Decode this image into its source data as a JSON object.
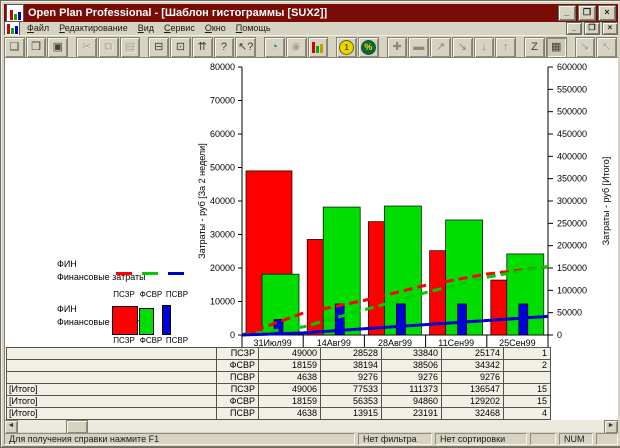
{
  "window": {
    "title": "Open Plan Professional - [Шаблон гистограммы [SUX2]]",
    "controls": {
      "minimize": "_",
      "restore": "❐",
      "close": "×"
    }
  },
  "colors": {
    "titlebar": "#7a0c08",
    "chrome": "#d6d3c3",
    "bar_red": "#ff0000",
    "bar_green": "#00dd00",
    "bar_blue": "#0000dd"
  },
  "menu": {
    "items": [
      "Файл",
      "Редактирование",
      "Вид",
      "Сервис",
      "Окно",
      "Помощь"
    ]
  },
  "toolbar": {
    "buttons": [
      {
        "name": "new",
        "icon_name": "new-document-icon",
        "glyph": "❏"
      },
      {
        "name": "open",
        "icon_name": "open-folder-icon",
        "glyph": "❒"
      },
      {
        "name": "save",
        "icon_name": "save-icon",
        "glyph": "▣"
      },
      {
        "name": "cut",
        "icon_name": "scissors-icon",
        "glyph": "✂",
        "enabled": false,
        "gap": true
      },
      {
        "name": "copy",
        "icon_name": "copy-icon",
        "glyph": "⧉",
        "enabled": false
      },
      {
        "name": "paste",
        "icon_name": "paste-icon",
        "glyph": "▤",
        "enabled": false
      },
      {
        "name": "print",
        "icon_name": "printer-icon",
        "glyph": "⊟",
        "gap": true
      },
      {
        "name": "print-preview",
        "icon_name": "preview-icon",
        "glyph": "⊡"
      },
      {
        "name": "update",
        "icon_name": "double-up-arrow-icon",
        "glyph": "⇈"
      },
      {
        "name": "help",
        "icon_name": "question-mark-icon",
        "glyph": "?"
      },
      {
        "name": "context-help",
        "icon_name": "arrow-question-icon",
        "glyph": "↖?"
      },
      {
        "name": "time-analysis",
        "icon_name": "clock-icon",
        "glyph": "◔",
        "color": "#008080",
        "gap": true
      },
      {
        "name": "resource-analysis",
        "icon_name": "resource-icon",
        "glyph": "◉",
        "enabled": false
      },
      {
        "name": "histogram",
        "icon_name": "histogram-icon",
        "icon": "histogram"
      },
      {
        "name": "cost",
        "icon_name": "coin-icon",
        "icon": "coin",
        "gap": true
      },
      {
        "name": "percent",
        "icon_name": "percent-icon",
        "icon": "percent"
      },
      {
        "name": "add",
        "icon_name": "plus-icon",
        "glyph": "✚",
        "color": "#8d8a6e",
        "gap": true
      },
      {
        "name": "remove",
        "icon_name": "minus-icon",
        "glyph": "▬",
        "color": "#8d8a6e"
      },
      {
        "name": "promote",
        "icon_name": "diagonal-up-icon",
        "glyph": "↗",
        "color": "#8d8a6e"
      },
      {
        "name": "demote",
        "icon_name": "diagonal-down-icon",
        "glyph": "↘",
        "color": "#8d8a6e"
      },
      {
        "name": "move-down",
        "icon_name": "down-arrow-icon",
        "glyph": "↓",
        "color": "#8d8a6e"
      },
      {
        "name": "move-up",
        "icon_name": "up-arrow-icon",
        "glyph": "↑",
        "color": "#8d8a6e"
      },
      {
        "name": "sort",
        "icon_name": "sort-z-icon",
        "glyph": "Z",
        "gap": true
      },
      {
        "name": "table-view",
        "icon_name": "table-grid-icon",
        "glyph": "▦",
        "pressed": true
      },
      {
        "name": "shrink-window",
        "icon_name": "shrink-box-icon",
        "glyph": "↘",
        "enabled": false,
        "gap": true
      },
      {
        "name": "grow-window",
        "icon_name": "grow-box-icon",
        "glyph": "↖",
        "enabled": false
      }
    ]
  },
  "legend": {
    "groups": [
      {
        "kind": "lines",
        "title1": "ФИН",
        "title2": "Финансовые затраты",
        "items": [
          {
            "label": "ПСЗР",
            "color": "#ff0000"
          },
          {
            "label": "ФСВР",
            "color": "#00cc00"
          },
          {
            "label": "ПСВР",
            "color": "#0000cc"
          }
        ]
      },
      {
        "kind": "bars",
        "title1": "ФИН",
        "title2": "Финансовые затраты",
        "items": [
          {
            "label": "ПСЗР",
            "color": "#ff0000"
          },
          {
            "label": "ФСВР",
            "color": "#00dd00"
          },
          {
            "label": "ПСВР",
            "color": "#0000dd"
          }
        ]
      }
    ]
  },
  "chart_data": {
    "type": "combo-bar-line",
    "title": "Шаблон гистограммы [SUX2]",
    "categories": [
      "31Июл99",
      "14Авг99",
      "28Авг99",
      "11Сен99",
      "25Сен99"
    ],
    "left_axis": {
      "title": "Затраты - руб [За 2 недели]",
      "min": 0,
      "max": 80000,
      "step": 10000
    },
    "right_axis": {
      "title": "Затраты - руб [Итого]",
      "min": 0,
      "max": 600000,
      "step": 50000
    },
    "bar_series": [
      {
        "name": "ПСЗР",
        "color": "#ff0000",
        "values": [
          49000,
          28528,
          33840,
          25174,
          16400
        ]
      },
      {
        "name": "ФСВР",
        "color": "#00dd00",
        "values": [
          18159,
          38194,
          38506,
          34342,
          24200
        ]
      },
      {
        "name": "ПСВР",
        "color": "#0000dd",
        "values": [
          4638,
          9276,
          9276,
          9276,
          9276
        ]
      }
    ],
    "line_series": [
      {
        "name": "ПСЗР [Итого]",
        "color": "#ff0000",
        "dash": "9,5",
        "values": [
          49006,
          77533,
          111373,
          136547,
          152500
        ]
      },
      {
        "name": "ФСВР [Итого]",
        "color": "#00cc00",
        "dash": "9,5",
        "values": [
          18159,
          56353,
          94860,
          129202,
          153700
        ]
      },
      {
        "name": "ПСВР [Итого]",
        "color": "#0000cc",
        "dash": "",
        "values": [
          4638,
          13915,
          23191,
          32468,
          41744
        ]
      }
    ],
    "grid": false,
    "legend_position": "left"
  },
  "table": {
    "rows": [
      {
        "group": "",
        "resource": "ПСЗР",
        "values": [
          "49000",
          "28528",
          "33840",
          "25174",
          "1"
        ]
      },
      {
        "group": "",
        "resource": "ФСВР",
        "values": [
          "18159",
          "38194",
          "38506",
          "34342",
          "2"
        ]
      },
      {
        "group": "",
        "resource": "ПСВР",
        "values": [
          "4638",
          "9276",
          "9276",
          "9276",
          ""
        ]
      },
      {
        "group": "[Итого]",
        "resource": "ПСЗР",
        "values": [
          "49006",
          "77533",
          "111373",
          "136547",
          "15"
        ]
      },
      {
        "group": "[Итого]",
        "resource": "ФСВР",
        "values": [
          "18159",
          "56353",
          "94860",
          "129202",
          "15"
        ]
      },
      {
        "group": "[Итого]",
        "resource": "ПСВР",
        "values": [
          "4638",
          "13915",
          "23191",
          "32468",
          "4"
        ]
      }
    ]
  },
  "statusbar": {
    "help": "Для получения справки нажмите F1",
    "filter": "Нет фильтра",
    "sort": "Нет сортировки",
    "num": "NUM"
  }
}
